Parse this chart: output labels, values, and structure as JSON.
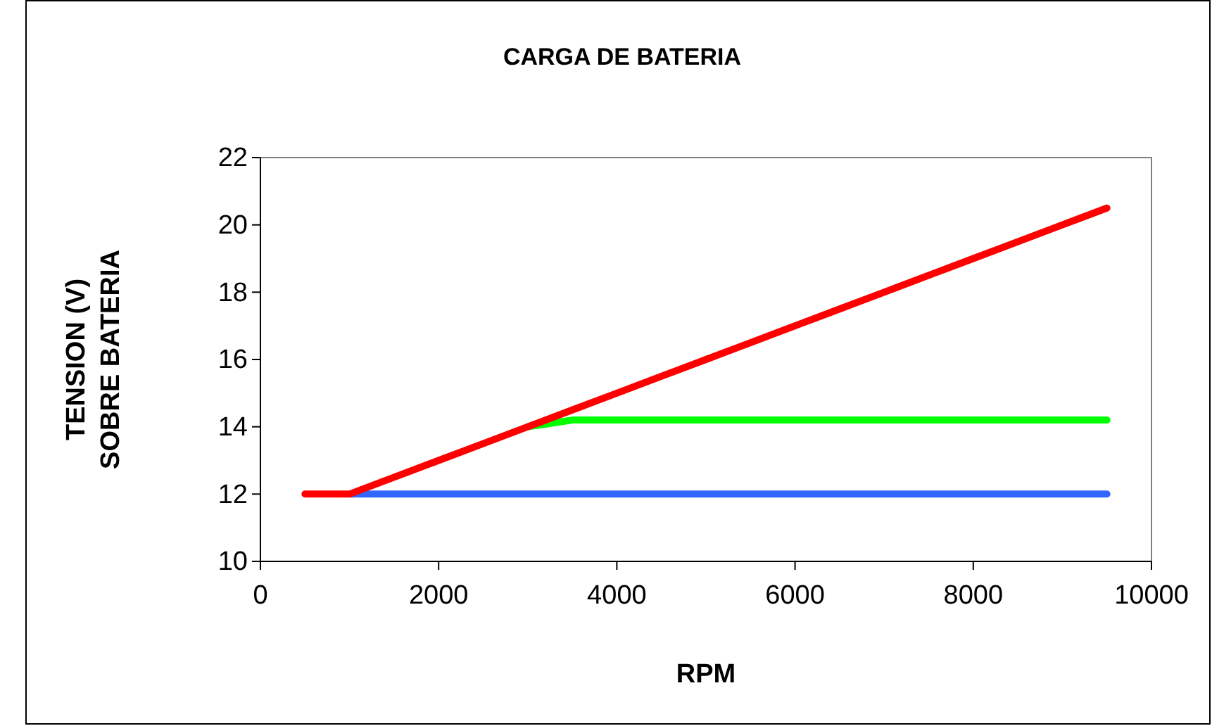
{
  "chart_data": {
    "type": "line",
    "title": "CARGA DE BATERIA",
    "xlabel": "RPM",
    "ylabel": "TENSION (V)\nSOBRE BATERIA",
    "x": [
      500,
      1000,
      1500,
      2000,
      2500,
      3000,
      3500,
      4000,
      4500,
      5000,
      5500,
      6000,
      6500,
      7000,
      7500,
      8000,
      8500,
      9000,
      9500
    ],
    "series": [
      {
        "color": "#3366ff",
        "values": [
          null,
          12,
          12,
          12,
          12,
          12,
          12,
          12,
          12,
          12,
          12,
          12,
          12,
          12,
          12,
          12,
          12,
          12,
          12
        ]
      },
      {
        "color": "#00ff00",
        "values": [
          null,
          null,
          null,
          null,
          null,
          14,
          14.2,
          14.2,
          14.2,
          14.2,
          14.2,
          14.2,
          14.2,
          14.2,
          14.2,
          14.2,
          14.2,
          14.2,
          14.2
        ]
      },
      {
        "color": "#ff0000",
        "values": [
          12,
          12,
          12.5,
          13,
          13.5,
          14,
          14.5,
          15,
          15.5,
          16,
          16.5,
          17,
          17.5,
          18,
          18.5,
          19,
          19.5,
          20,
          20.5
        ]
      }
    ],
    "xlim": [
      0,
      10000
    ],
    "xticks": [
      0,
      2000,
      4000,
      6000,
      8000,
      10000
    ],
    "ylim": [
      10,
      22
    ],
    "yticks": [
      10,
      12,
      14,
      16,
      18,
      20,
      22
    ],
    "grid": false,
    "marker": "none",
    "line_style": "solid"
  }
}
